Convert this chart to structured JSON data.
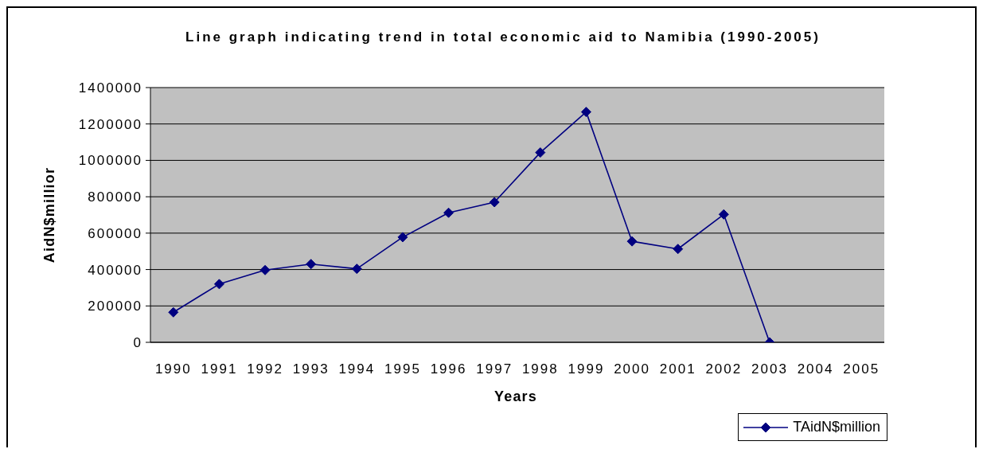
{
  "chart_data": {
    "type": "line",
    "title": "Line graph indicating trend in total economic aid to Namibia (1990-2005)",
    "xlabel": "Years",
    "ylabel": "AidN$millior",
    "categories": [
      "1990",
      "1991",
      "1992",
      "1993",
      "1994",
      "1995",
      "1996",
      "1997",
      "1998",
      "1999",
      "2000",
      "2001",
      "2002",
      "2003",
      "2004",
      "2005"
    ],
    "series": [
      {
        "name": "TAidN$million",
        "color": "#000080",
        "values": [
          165000,
          320000,
          397000,
          430000,
          404000,
          578000,
          712000,
          770000,
          1043000,
          1266000,
          555000,
          513000,
          703000,
          0,
          null,
          null
        ]
      }
    ],
    "ylim": [
      0,
      1400000
    ],
    "yticks": [
      0,
      200000,
      400000,
      600000,
      800000,
      1000000,
      1200000,
      1400000
    ],
    "grid": "y",
    "legend": "bottom right",
    "marker": "diamond",
    "line_style": "solid"
  }
}
